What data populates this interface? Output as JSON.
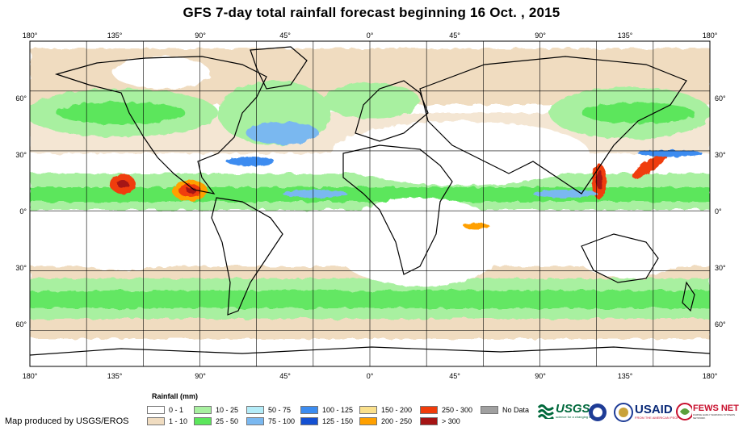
{
  "title": "GFS 7-day total rainfall forecast beginning 16 Oct. , 2015",
  "map": {
    "projection": "equirectangular",
    "lon_range": [
      -180,
      180
    ],
    "lat_range": [
      -78,
      85
    ],
    "graticule_interval_deg": 30,
    "x_tick_labels": [
      "180°",
      "135°",
      "90°",
      "45°",
      "0°",
      "45°",
      "90°",
      "135°",
      "180°"
    ],
    "y_tick_labels": [
      "60°",
      "30°",
      "0°",
      "30°",
      "60°"
    ],
    "colors": {
      "ocean_dry": "#ffffff",
      "land_dry": "#f0dcc0",
      "border": "#000000"
    }
  },
  "legend": {
    "title": "Rainfall (mm)",
    "items": [
      {
        "label": "0 - 1",
        "color": "#ffffff"
      },
      {
        "label": "1 - 10",
        "color": "#f0dcc0"
      },
      {
        "label": "10 - 25",
        "color": "#a8f0a0"
      },
      {
        "label": "25 - 50",
        "color": "#5ce65c"
      },
      {
        "label": "50 - 75",
        "color": "#b4ecf8"
      },
      {
        "label": "75 - 100",
        "color": "#7ab8f0"
      },
      {
        "label": "100 - 125",
        "color": "#3c8cf0"
      },
      {
        "label": "125 - 150",
        "color": "#1450d2"
      },
      {
        "label": "150 - 200",
        "color": "#fae08c"
      },
      {
        "label": "200 - 250",
        "color": "#ffa000"
      },
      {
        "label": "250 - 300",
        "color": "#f03c0a"
      },
      {
        "label": "> 300",
        "color": "#a51414"
      },
      {
        "label": "No Data",
        "color": "#a0a0a0"
      }
    ]
  },
  "credit": "Map produced by USGS/EROS",
  "logos": {
    "usgs": {
      "text": "USGS",
      "tagline": "science for a changing world"
    },
    "noaa": {
      "icon": "noaa-seal-icon"
    },
    "dos": {
      "icon": "state-department-seal-icon"
    },
    "usaid": {
      "text": "USAID",
      "tagline": "FROM THE AMERICAN PEOPLE"
    },
    "fewsnet": {
      "text": "FEWS NET",
      "tagline": "FAMINE EARLY WARNING SYSTEMS NETWORK"
    }
  }
}
